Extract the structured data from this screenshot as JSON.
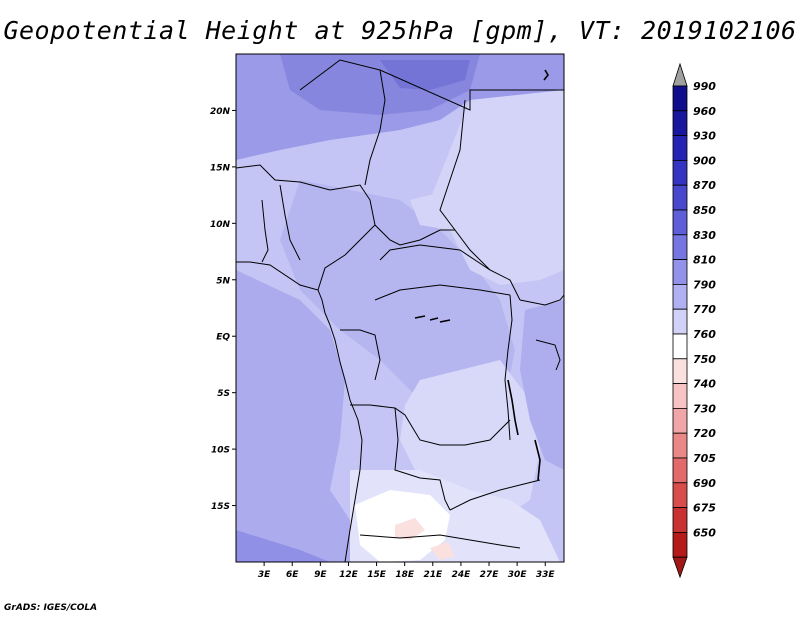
{
  "title": "Geopotential Height at 925hPa [gpm], VT: 2019102106",
  "footer": "GrADS: IGES/COLA",
  "map": {
    "lat_ticks": [
      {
        "lat": 20,
        "label": "20N"
      },
      {
        "lat": 15,
        "label": "15N"
      },
      {
        "lat": 10,
        "label": "10N"
      },
      {
        "lat": 5,
        "label": "5N"
      },
      {
        "lat": 0,
        "label": "EQ"
      },
      {
        "lat": -5,
        "label": "5S"
      },
      {
        "lat": -10,
        "label": "10S"
      },
      {
        "lat": -15,
        "label": "15S"
      }
    ],
    "lon_ticks": [
      {
        "lon": 3,
        "label": "3E"
      },
      {
        "lon": 6,
        "label": "6E"
      },
      {
        "lon": 9,
        "label": "9E"
      },
      {
        "lon": 12,
        "label": "12E"
      },
      {
        "lon": 15,
        "label": "15E"
      },
      {
        "lon": 18,
        "label": "18E"
      },
      {
        "lon": 21,
        "label": "21E"
      },
      {
        "lon": 24,
        "label": "24E"
      },
      {
        "lon": 27,
        "label": "27E"
      },
      {
        "lon": 30,
        "label": "30E"
      },
      {
        "lon": 33,
        "label": "33E"
      }
    ],
    "lon_range": [
      0,
      35
    ],
    "lat_range": [
      -20,
      25
    ]
  },
  "colorbar": {
    "levels": [
      "990",
      "960",
      "930",
      "900",
      "870",
      "850",
      "830",
      "810",
      "790",
      "770",
      "760",
      "750",
      "740",
      "730",
      "720",
      "705",
      "690",
      "675",
      "650"
    ],
    "colors": [
      "#0e0e8c",
      "#18189f",
      "#2424b4",
      "#3434c3",
      "#4848cf",
      "#5e5ed9",
      "#7676e2",
      "#9292ea",
      "#b0b0f2",
      "#d2d2f8",
      "#ffffff",
      "#fbe0e0",
      "#f6c4c4",
      "#f0a6a6",
      "#ea8888",
      "#e26a6a",
      "#d84c4c",
      "#c83232",
      "#b41a1a"
    ],
    "top_arrow_color": "#a0a0a0",
    "bottom_arrow_color": "#a01818"
  }
}
